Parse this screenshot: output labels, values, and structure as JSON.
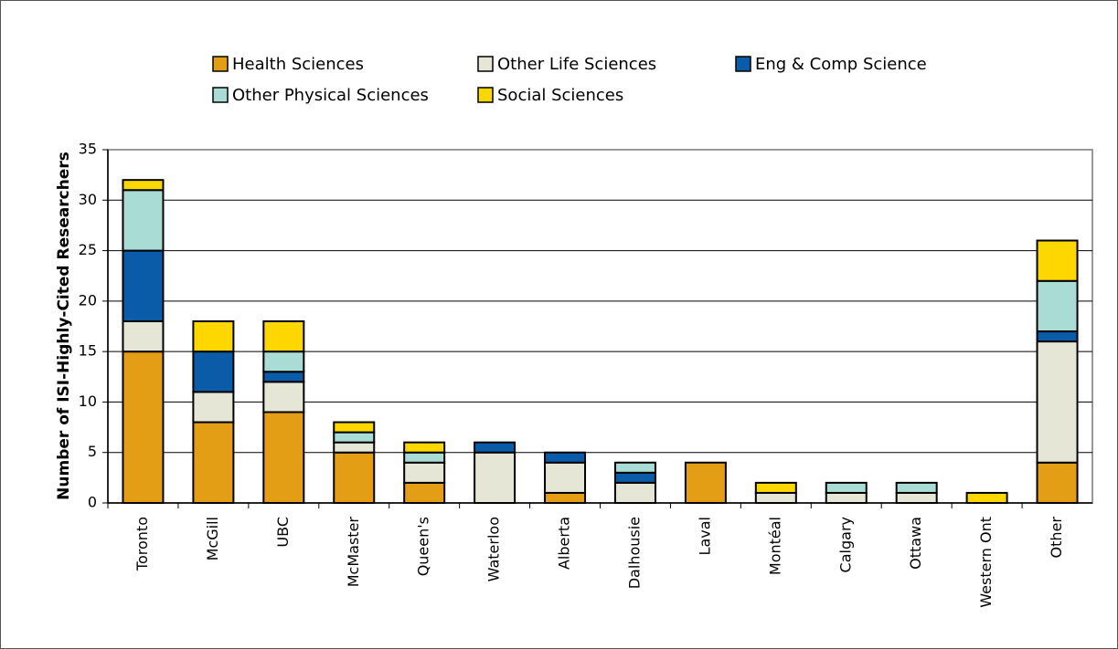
{
  "chart_data": {
    "type": "stacked_bar",
    "y_label": "Number of ISI-Highly-Cited Researchers",
    "categories": [
      "Toronto",
      "McGill",
      "UBC",
      "McMaster",
      "Queen's",
      "Waterloo",
      "Alberta",
      "Dalhousie",
      "Laval",
      "Montéal",
      "Calgary",
      "Ottawa",
      "Western Ont",
      "Other"
    ],
    "series": [
      {
        "name": "Health Sciences",
        "color": "#e39e16",
        "values": [
          15,
          8,
          9,
          5,
          2,
          0,
          1,
          0,
          4,
          0,
          0,
          0,
          0,
          4
        ]
      },
      {
        "name": "Other Life Sciences",
        "color": "#e6e6d6",
        "values": [
          3,
          3,
          3,
          1,
          2,
          5,
          3,
          2,
          0,
          1,
          1,
          1,
          0,
          12
        ]
      },
      {
        "name": "Eng & Comp Science",
        "color": "#0a5ca8",
        "values": [
          7,
          4,
          1,
          0,
          0,
          1,
          1,
          1,
          0,
          0,
          0,
          0,
          0,
          1
        ]
      },
      {
        "name": "Other Physical Sciences",
        "color": "#a8dcd4",
        "values": [
          6,
          0,
          2,
          1,
          1,
          0,
          0,
          1,
          0,
          0,
          1,
          1,
          0,
          5
        ]
      },
      {
        "name": "Social Sciences",
        "color": "#ffd700",
        "values": [
          1,
          3,
          3,
          1,
          1,
          0,
          0,
          0,
          0,
          1,
          0,
          0,
          1,
          4
        ]
      }
    ],
    "ylim": [
      0,
      35
    ],
    "yticks": [
      0,
      5,
      10,
      15,
      20,
      25,
      30,
      35
    ],
    "grid": true
  }
}
